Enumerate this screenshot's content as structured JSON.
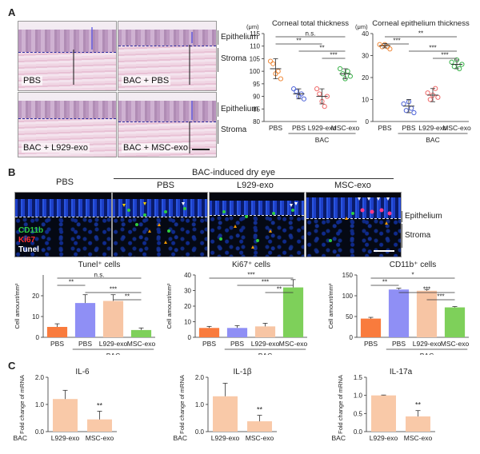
{
  "panels": {
    "a": "A",
    "b": "B",
    "c": "C"
  },
  "panelA": {
    "images": [
      "PBS",
      "BAC + PBS",
      "BAC + L929-exo",
      "BAC + MSC-exo"
    ],
    "layers": {
      "epithelium": "Epithelium",
      "stroma": "Stroma"
    }
  },
  "panelB": {
    "group_header": "BAC-induced dry eye",
    "columns": [
      "PBS",
      "PBS",
      "L929-exo",
      "MSC-exo"
    ],
    "stains": {
      "cd11b": "CD11b",
      "ki67": "Ki67",
      "tunel": "Tunel"
    },
    "stain_colors": {
      "cd11b": "#2ecc40",
      "ki67": "#ff3030",
      "tunel": "#ffffff"
    },
    "layers": {
      "epithelium": "Epithelium",
      "stroma": "Stroma"
    }
  },
  "chart_data": [
    {
      "id": "total",
      "type": "scatter",
      "title": "Corneal total thickness",
      "ylabel": "(μm)",
      "ylim": [
        80,
        115
      ],
      "yticks": [
        80,
        85,
        90,
        95,
        100,
        105,
        110,
        115
      ],
      "categories": [
        "PBS",
        "PBS",
        "L929-exo",
        "MSC-exo"
      ],
      "group_label": "BAC",
      "means": [
        101,
        91,
        90,
        99
      ],
      "sd": [
        4,
        2,
        3,
        2
      ],
      "colors": [
        "#f08a3a",
        "#4d63d8",
        "#f06a6a",
        "#3cb44b"
      ],
      "points": [
        [
          104,
          103,
          99,
          100,
          97
        ],
        [
          93,
          92,
          90,
          91,
          89
        ],
        [
          93,
          91,
          88,
          86,
          90
        ],
        [
          101,
          99,
          97,
          100,
          98
        ]
      ],
      "sig": [
        {
          "from": 0,
          "to": 3,
          "label": "n.s."
        },
        {
          "from": 0,
          "to": 2,
          "label": "**"
        },
        {
          "from": 1,
          "to": 3,
          "label": "**"
        },
        {
          "from": 2,
          "to": 3,
          "label": "***"
        }
      ]
    },
    {
      "id": "epi",
      "type": "scatter",
      "title": "Corneal epithelium thickness",
      "ylabel": "(μm)",
      "ylim": [
        0,
        40
      ],
      "yticks": [
        0,
        10,
        20,
        30,
        40
      ],
      "categories": [
        "PBS",
        "PBS",
        "L929-exo",
        "MSC-exo"
      ],
      "group_label": "BAC",
      "means": [
        34.5,
        7,
        12,
        26
      ],
      "sd": [
        1,
        3,
        3,
        2
      ],
      "colors": [
        "#f08a3a",
        "#4d63d8",
        "#f06a6a",
        "#3cb44b"
      ],
      "points": [
        [
          35,
          34,
          35,
          34,
          33
        ],
        [
          8,
          5,
          9,
          6,
          4
        ],
        [
          13,
          10,
          12,
          15,
          11
        ],
        [
          27,
          25,
          28,
          24,
          26
        ]
      ],
      "sig": [
        {
          "from": 0,
          "to": 3,
          "label": "**"
        },
        {
          "from": 0,
          "to": 1,
          "label": "***"
        },
        {
          "from": 1,
          "to": 3,
          "label": "***"
        },
        {
          "from": 2,
          "to": 3,
          "label": "***"
        }
      ]
    },
    {
      "id": "tunel",
      "type": "bar",
      "title": "Tunel⁺ cells",
      "ylabel": "Cell amount/mm²",
      "ylim": [
        0,
        30
      ],
      "yticks": [
        0,
        10,
        20
      ],
      "categories": [
        "PBS",
        "PBS",
        "L929-exo",
        "MSC-exo"
      ],
      "group_label": "BAC",
      "values": [
        5,
        16.5,
        17.5,
        3.5
      ],
      "sd": [
        1.5,
        4,
        3,
        1
      ],
      "colors": [
        "#f97b3d",
        "#8f8ff5",
        "#f7c5a4",
        "#7ed05a"
      ],
      "sig": [
        {
          "from": 0,
          "to": 3,
          "label": "n.s."
        },
        {
          "from": 0,
          "to": 1,
          "label": "**"
        },
        {
          "from": 1,
          "to": 3,
          "label": "***"
        },
        {
          "from": 2,
          "to": 3,
          "label": "**"
        }
      ]
    },
    {
      "id": "ki67",
      "type": "bar",
      "title": "Ki67⁺ cells",
      "ylabel": "Cell amount/mm²",
      "ylim": [
        0,
        40
      ],
      "yticks": [
        0,
        10,
        20,
        30,
        40
      ],
      "categories": [
        "PBS",
        "PBS",
        "L929-exo",
        "MSC-exo"
      ],
      "group_label": "BAC",
      "values": [
        6,
        6,
        7,
        32
      ],
      "sd": [
        1,
        1.5,
        2,
        5
      ],
      "colors": [
        "#f97b3d",
        "#8f8ff5",
        "#f7c5a4",
        "#7ed05a"
      ],
      "sig": [
        {
          "from": 0,
          "to": 3,
          "label": "***"
        },
        {
          "from": 1,
          "to": 3,
          "label": "***"
        },
        {
          "from": 2,
          "to": 3,
          "label": "**"
        }
      ]
    },
    {
      "id": "cd11b",
      "type": "bar",
      "title": "CD11b⁺ cells",
      "ylabel": "Cell amount/mm²",
      "ylim": [
        0,
        150
      ],
      "yticks": [
        0,
        50,
        100,
        150
      ],
      "categories": [
        "PBS",
        "PBS",
        "L929-exo",
        "MSC-exo"
      ],
      "group_label": "BAC",
      "values": [
        45,
        115,
        112,
        72
      ],
      "sd": [
        3,
        3,
        3,
        2
      ],
      "colors": [
        "#f97b3d",
        "#8f8ff5",
        "#f7c5a4",
        "#7ed05a"
      ],
      "sig": [
        {
          "from": 0,
          "to": 3,
          "label": "*"
        },
        {
          "from": 0,
          "to": 1,
          "label": "**"
        },
        {
          "from": 1,
          "to": 3,
          "label": "***"
        },
        {
          "from": 2,
          "to": 3,
          "label": "***"
        }
      ]
    },
    {
      "id": "il6",
      "type": "bar",
      "title": "IL-6",
      "ylabel": "Fold change of mRNA",
      "ylim": [
        0,
        2
      ],
      "yticks": [
        0,
        1.0,
        2.0
      ],
      "categories": [
        "L929-exo",
        "MSC-exo"
      ],
      "group_label": "BAC",
      "values": [
        1.2,
        0.45
      ],
      "sd": [
        0.32,
        0.3
      ],
      "colors": [
        "#f9c9a8",
        "#f9c9a8"
      ],
      "sig": [
        {
          "bar": 1,
          "label": "**"
        }
      ]
    },
    {
      "id": "il1b",
      "type": "bar",
      "title": "IL-1β",
      "ylabel": "Fold change of mRNA",
      "ylim": [
        0,
        2
      ],
      "yticks": [
        0,
        1.0,
        2.0
      ],
      "categories": [
        "L929-exo",
        "MSC-exo"
      ],
      "group_label": "BAC",
      "values": [
        1.3,
        0.38
      ],
      "sd": [
        0.48,
        0.22
      ],
      "colors": [
        "#f9c9a8",
        "#f9c9a8"
      ],
      "sig": [
        {
          "bar": 1,
          "label": "**"
        }
      ]
    },
    {
      "id": "il17a",
      "type": "bar",
      "title": "IL-17a",
      "ylabel": "Fold change of mRNA",
      "ylim": [
        0,
        1.5
      ],
      "yticks": [
        0,
        0.5,
        1.0,
        1.5
      ],
      "categories": [
        "L929-exo",
        "MSC-exo"
      ],
      "group_label": "BAC",
      "values": [
        1.0,
        0.42
      ],
      "sd": [
        0.01,
        0.16
      ],
      "colors": [
        "#f9c9a8",
        "#f9c9a8"
      ],
      "sig": [
        {
          "bar": 1,
          "label": "**"
        }
      ]
    }
  ]
}
